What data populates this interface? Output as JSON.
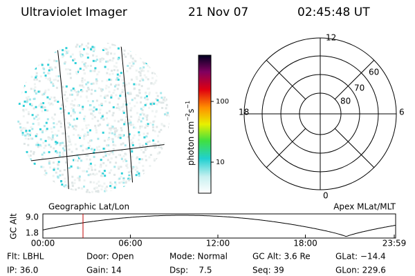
{
  "header": {
    "title": "Ultraviolet Imager",
    "date": "21 Nov 07",
    "time": "02:45:48 UT"
  },
  "colorbar": {
    "label": {
      "unit": "photon cm",
      "exp1": "−2",
      "unit2": "s",
      "exp2": "−1"
    },
    "ticks": [
      "100",
      "10"
    ]
  },
  "polar": {
    "mlt_labels": [
      "12",
      "18",
      "6",
      "0"
    ],
    "lat_labels": [
      "60",
      "70",
      "80"
    ]
  },
  "orbit": {
    "left_label": "Geographic Lat/Lon",
    "right_label": "Apex MLat/MLT",
    "y_label": "GC Alt",
    "yticks": [
      "9.0",
      "1.8"
    ],
    "xticks": [
      "00:00",
      "06:00",
      "12:00",
      "18:00",
      "23:59"
    ]
  },
  "info": [
    [
      "Flt: LBHL",
      "Door: Open",
      "Mode: Normal",
      "GC Alt: 3.6 Re",
      "GLat: −14.4"
    ],
    [
      "IP: 36.0",
      "Gain: 14",
      "Dsp:    7.5",
      "Seq: 39",
      "GLon: 229.6"
    ]
  ]
}
